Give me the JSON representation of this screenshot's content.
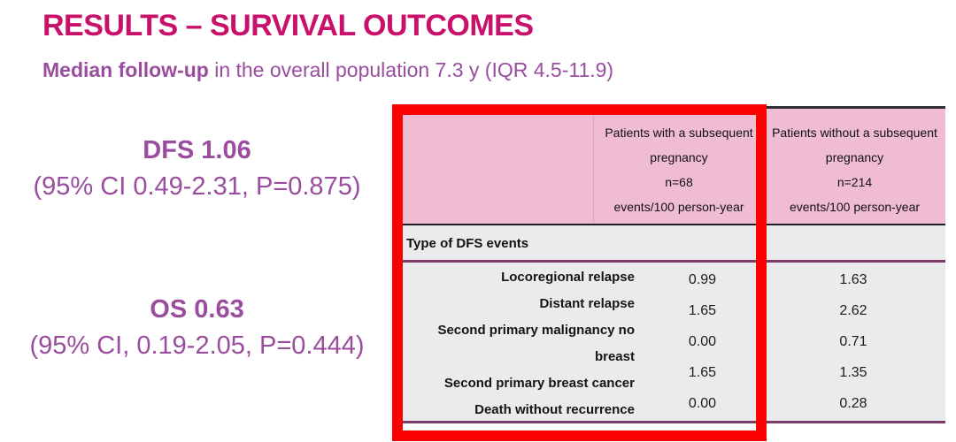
{
  "slide": {
    "title": "RESULTS – SURVIVAL OUTCOMES",
    "subtitle": {
      "lead": "Median follow-up",
      "rest": " in the overall population 7.3 y (IQR 4.5-11.9)"
    }
  },
  "stats": {
    "dfs": {
      "value": "DFS 1.06",
      "ci": "(95% CI 0.49-2.31, P=0.875)"
    },
    "os": {
      "value": "OS 0.63",
      "ci": "(95% CI, 0.19-2.05, P=0.444)"
    }
  },
  "table": {
    "header": {
      "col_with": "Patients with a subsequent\npregnancy\nn=68\nevents/100 person-year",
      "col_without": "Patients without a subsequent\npregnancy\nn=214\nevents/100 person-year"
    },
    "section_label": "Type of DFS events",
    "rows": [
      {
        "label": "Locoregional relapse",
        "with_pregnancy": "0.99",
        "without_pregnancy": "1.63"
      },
      {
        "label": "Distant relapse",
        "with_pregnancy": "1.65",
        "without_pregnancy": "2.62"
      },
      {
        "label": "Second primary malignancy no breast",
        "with_pregnancy": "0.00",
        "without_pregnancy": "0.71"
      },
      {
        "label": "Second primary breast cancer",
        "with_pregnancy": "1.65",
        "without_pregnancy": "1.35"
      },
      {
        "label": "Death without recurrence",
        "with_pregnancy": "0.00",
        "without_pregnancy": "0.28"
      }
    ]
  },
  "colors": {
    "title_magenta": "#C9116B",
    "text_purple": "#9A4D9E",
    "header_pink": "#F0BCD4",
    "table_body_gray": "#E9EBED",
    "table_line_purple": "#7E3A68",
    "highlight_red": "#FA0202"
  }
}
